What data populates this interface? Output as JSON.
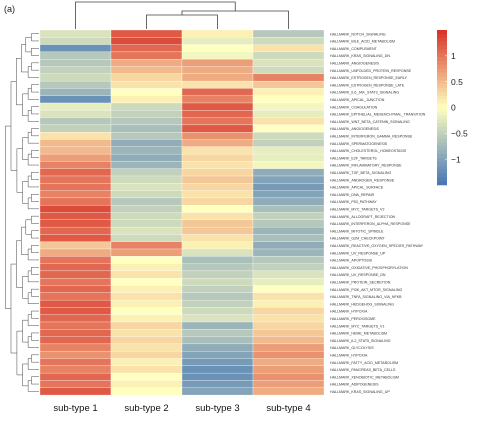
{
  "panel_label": "(a)",
  "chart_data": {
    "type": "heatmap",
    "title": "",
    "xlabel": "",
    "ylabel": "",
    "columns": [
      "sub-type 1",
      "sub-type 2",
      "sub-type 3",
      "sub-type 4"
    ],
    "color_scale": {
      "min": -1.5,
      "max": 1.5,
      "low_color": "#4575b4",
      "mid_color": "#ffffbf",
      "high_color": "#d73027",
      "ticks": [
        1,
        0.5,
        0,
        -0.5,
        -1
      ],
      "tick_labels": [
        "1",
        "0.5",
        "0",
        "−0.5",
        "−1"
      ]
    },
    "dendrograms": {
      "columns": true,
      "rows": true
    },
    "rows": [
      {
        "name": "HALLMARK_NOTCH_SIGNALING",
        "values": [
          -0.3,
          1.2,
          0.1,
          -0.6
        ]
      },
      {
        "name": "HALLMARK_BILE_ACID_METABOLISM",
        "values": [
          -0.4,
          1.3,
          -0.2,
          -0.4
        ]
      },
      {
        "name": "HALLMARK_COMPLEMENT",
        "values": [
          -1.2,
          1.1,
          0.0,
          0.2
        ]
      },
      {
        "name": "HALLMARK_KRAS_SIGNALING_DN",
        "values": [
          -0.6,
          1.0,
          -0.1,
          -0.4
        ]
      },
      {
        "name": "HALLMARK_ANGIOGENESIS",
        "values": [
          -0.6,
          0.6,
          0.7,
          -0.3
        ]
      },
      {
        "name": "HALLMARK_UNFOLDED_PROTEIN_RESPONSE",
        "values": [
          -0.5,
          0.5,
          0.6,
          -0.4
        ]
      },
      {
        "name": "HALLMARK_ESTROGEN_RESPONSE_EARLY",
        "values": [
          -0.4,
          0.3,
          0.6,
          0.9
        ]
      },
      {
        "name": "HALLMARK_ESTROGEN_RESPONSE_LATE",
        "values": [
          -0.6,
          0.2,
          0.2,
          0.4
        ]
      },
      {
        "name": "HALLMARK_IL6_JAK_STAT3_SIGNALING",
        "values": [
          -0.8,
          0.0,
          1.1,
          0.1
        ]
      },
      {
        "name": "HALLMARK_APICAL_JUNCTION",
        "values": [
          -1.2,
          0.1,
          0.9,
          0.0
        ]
      },
      {
        "name": "HALLMARK_COAGULATION",
        "values": [
          -0.2,
          -0.4,
          1.2,
          -0.1
        ]
      },
      {
        "name": "HALLMARK_EPITHELIAL_MESENCHYMAL_TRANSITION",
        "values": [
          -0.3,
          -0.5,
          1.1,
          -0.2
        ]
      },
      {
        "name": "HALLMARK_WNT_BETA_CATENIN_SIGNALING",
        "values": [
          -0.6,
          -0.6,
          1.0,
          0.2
        ]
      },
      {
        "name": "HALLMARK_ANGIOGENESIS",
        "values": [
          -0.5,
          -0.7,
          1.2,
          0.0
        ]
      },
      {
        "name": "HALLMARK_INTERFERON_GAMMA_RESPONSE",
        "values": [
          0.2,
          -0.6,
          0.8,
          -0.4
        ]
      },
      {
        "name": "HALLMARK_SPERMATOGENESIS",
        "values": [
          0.5,
          -0.9,
          0.6,
          -0.5
        ]
      },
      {
        "name": "HALLMARK_CHOLESTEROL_HOMEOSTASIS",
        "values": [
          0.5,
          -0.8,
          0.2,
          -0.2
        ]
      },
      {
        "name": "HALLMARK_E2F_TARGETS",
        "values": [
          0.7,
          -0.9,
          0.3,
          -0.2
        ]
      },
      {
        "name": "HALLMARK_INFLAMMATORY_RESPONSE",
        "values": [
          0.9,
          -0.8,
          0.2,
          -0.1
        ]
      },
      {
        "name": "HALLMARK_TGF_BETA_SIGNALING",
        "values": [
          1.1,
          -0.5,
          0.3,
          -0.9
        ]
      },
      {
        "name": "HALLMARK_ANDROGEN_RESPONSE",
        "values": [
          1.0,
          -0.4,
          0.4,
          -1.0
        ]
      },
      {
        "name": "HALLMARK_APICAL_SURFACE",
        "values": [
          1.0,
          -0.3,
          0.3,
          -1.1
        ]
      },
      {
        "name": "HALLMARK_DNA_REPAIR",
        "values": [
          0.9,
          -0.4,
          0.2,
          -1.0
        ]
      },
      {
        "name": "HALLMARK_P53_PATHWAY",
        "values": [
          1.0,
          -0.6,
          0.3,
          -0.9
        ]
      },
      {
        "name": "HALLMARK_MYC_TARGETS_V2",
        "values": [
          1.3,
          -0.5,
          0.0,
          -0.7
        ]
      },
      {
        "name": "HALLMARK_ALLOGRAFT_REJECTION",
        "values": [
          1.2,
          -0.4,
          0.2,
          -0.5
        ]
      },
      {
        "name": "HALLMARK_INTERFERON_ALPHA_RESPONSE",
        "values": [
          1.2,
          -0.4,
          0.4,
          -0.6
        ]
      },
      {
        "name": "HALLMARK_MITOTIC_SPINDLE",
        "values": [
          1.1,
          -0.3,
          0.4,
          -0.8
        ]
      },
      {
        "name": "HALLMARK_G2M_CHECKPOINT",
        "values": [
          1.2,
          -0.4,
          0.2,
          -0.7
        ]
      },
      {
        "name": "HALLMARK_REACTIVE_OXYGEN_SPECIES_PATHWAY",
        "values": [
          0.4,
          0.9,
          0.1,
          -0.9
        ]
      },
      {
        "name": "HALLMARK_UV_RESPONSE_UP",
        "values": [
          0.6,
          0.7,
          -0.3,
          -0.8
        ]
      },
      {
        "name": "HALLMARK_APOPTOSIS",
        "values": [
          1.0,
          0.0,
          -0.7,
          -0.6
        ]
      },
      {
        "name": "HALLMARK_OXIDATIVE_PHOSPHORYLATION",
        "values": [
          1.1,
          0.1,
          -0.6,
          -0.5
        ]
      },
      {
        "name": "HALLMARK_UV_RESPONSE_DN",
        "values": [
          1.1,
          0.2,
          -0.5,
          -0.3
        ]
      },
      {
        "name": "HALLMARK_PROTEIN_SECRETION",
        "values": [
          1.0,
          0.0,
          -0.4,
          -0.2
        ]
      },
      {
        "name": "HALLMARK_PI3K_AKT_MTOR_SIGNALING",
        "values": [
          1.1,
          0.1,
          -0.5,
          0.0
        ]
      },
      {
        "name": "HALLMARK_TNFA_SIGNALING_VIA_NFKB",
        "values": [
          1.0,
          0.2,
          -0.6,
          0.2
        ]
      },
      {
        "name": "HALLMARK_HEDGEHOG_SIGNALING",
        "values": [
          1.2,
          0.1,
          -0.5,
          0.1
        ]
      },
      {
        "name": "HALLMARK_HYPOXIA",
        "values": [
          1.2,
          0.0,
          -0.4,
          0.3
        ]
      },
      {
        "name": "HALLMARK_PEROXISOME",
        "values": [
          1.1,
          0.1,
          -0.3,
          0.2
        ]
      },
      {
        "name": "HALLMARK_MYC_TARGETS_V1",
        "values": [
          1.0,
          0.3,
          -0.8,
          0.3
        ]
      },
      {
        "name": "HALLMARK_HEME_METABOLISM",
        "values": [
          1.1,
          0.2,
          -0.6,
          0.4
        ]
      },
      {
        "name": "HALLMARK_IL2_STAT5_SIGNALING",
        "values": [
          1.1,
          0.3,
          -0.7,
          0.5
        ]
      },
      {
        "name": "HALLMARK_GLYCOLYSIS",
        "values": [
          0.9,
          0.2,
          -0.9,
          0.7
        ]
      },
      {
        "name": "HALLMARK_HYPOXIA",
        "values": [
          0.8,
          0.3,
          -1.0,
          0.8
        ]
      },
      {
        "name": "HALLMARK_FATTY_ACID_METABOLISM",
        "values": [
          1.0,
          0.1,
          -1.1,
          0.6
        ]
      },
      {
        "name": "HALLMARK_PANCREAS_BETA_CELLS",
        "values": [
          0.9,
          0.2,
          -1.2,
          0.7
        ]
      },
      {
        "name": "HALLMARK_XENOBIOTIC_METABOLISM",
        "values": [
          1.1,
          0.0,
          -1.2,
          0.8
        ]
      },
      {
        "name": "HALLMARK_ADIPOGENESIS",
        "values": [
          1.0,
          0.1,
          -1.1,
          0.7
        ]
      },
      {
        "name": "HALLMARK_KRAS_SIGNALING_UP",
        "values": [
          1.2,
          0.0,
          -1.0,
          0.6
        ]
      }
    ]
  }
}
